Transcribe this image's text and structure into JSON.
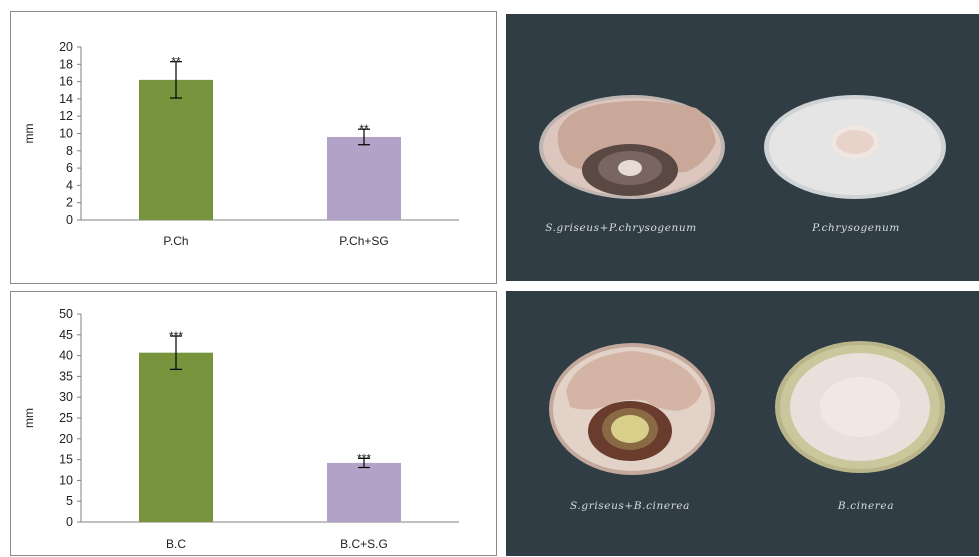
{
  "chart_data": [
    {
      "type": "bar",
      "ylabel": "mm",
      "ylim": [
        0,
        20
      ],
      "yticks": [
        0,
        2,
        4,
        6,
        8,
        10,
        12,
        14,
        16,
        18,
        20
      ],
      "grid": false,
      "categories": [
        "P.Ch",
        "P.Ch+SG"
      ],
      "values": [
        16.2,
        9.6
      ],
      "errors": [
        2.1,
        0.9
      ],
      "significance": [
        "**",
        "**"
      ],
      "colors": [
        "#77933c",
        "#b3a2c7"
      ]
    },
    {
      "type": "bar",
      "ylabel": "mm",
      "ylim": [
        0,
        50
      ],
      "yticks": [
        0,
        5,
        10,
        15,
        20,
        25,
        30,
        35,
        40,
        45,
        50
      ],
      "grid": false,
      "categories": [
        "B.C",
        "B.C+S.G"
      ],
      "values": [
        40.7,
        14.2
      ],
      "errors": [
        4.0,
        1.1
      ],
      "significance": [
        "***",
        "***"
      ],
      "colors": [
        "#77933c",
        "#b3a2c7"
      ]
    }
  ],
  "photos": {
    "top": {
      "captions": [
        "S.griseus+P.chrysogenum",
        "P.chrysogenum"
      ]
    },
    "bottom": {
      "captions": [
        "S.griseus+B.cinerea",
        "B.cinerea"
      ]
    }
  }
}
